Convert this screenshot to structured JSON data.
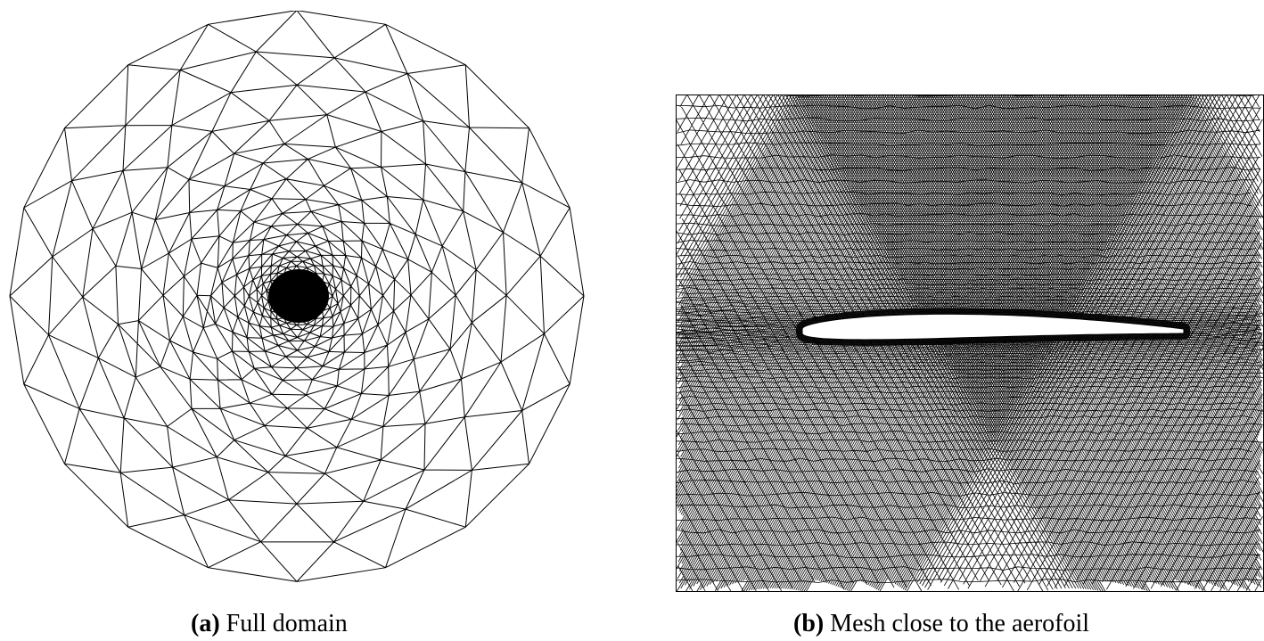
{
  "figure": {
    "panel_a": {
      "label": "(a)",
      "caption": "Full domain"
    },
    "panel_b": {
      "label": "(b)",
      "caption": "Mesh close to the aerofoil"
    }
  },
  "colors": {
    "mesh_line": "#000000",
    "background": "#ffffff",
    "aerofoil_fill": "#ffffff"
  }
}
